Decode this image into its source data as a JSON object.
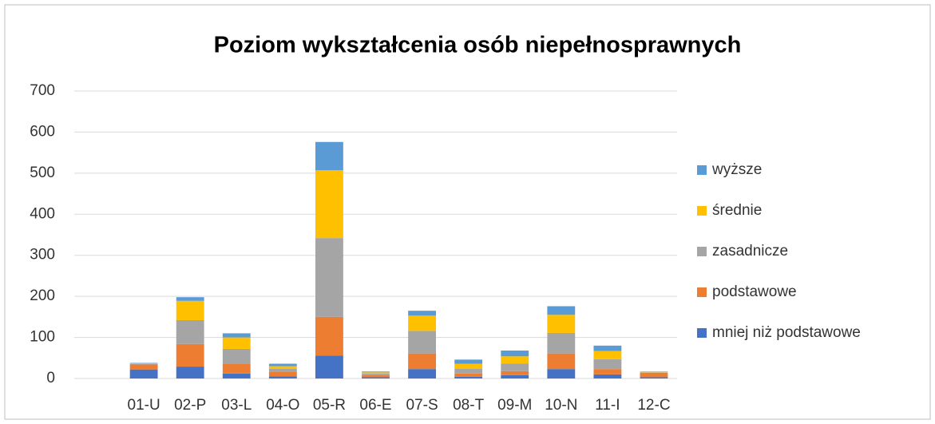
{
  "chart_data": {
    "type": "bar",
    "stacked": true,
    "title": "Poziom wykształcenia osób niepełnosprawnych",
    "categories": [
      null,
      "01-U",
      "02-P",
      "03-L",
      "04-O",
      "05-R",
      "06-E",
      "07-S",
      "08-T",
      "09-M",
      "10-N",
      "11-I",
      "12-C"
    ],
    "series": [
      {
        "name": "mniej niż podstawowe",
        "color": "#4472c4",
        "values": [
          null,
          22,
          29,
          12,
          5,
          56,
          3,
          23,
          4,
          8,
          23,
          10,
          3
        ]
      },
      {
        "name": "podstawowe",
        "color": "#ed7d31",
        "values": [
          null,
          12,
          55,
          23,
          12,
          94,
          5,
          38,
          8,
          10,
          38,
          13,
          11
        ]
      },
      {
        "name": "zasadnicze",
        "color": "#a5a5a5",
        "values": [
          null,
          1,
          58,
          37,
          7,
          192,
          4,
          55,
          12,
          18,
          50,
          24,
          1
        ]
      },
      {
        "name": "średnie",
        "color": "#ffc000",
        "values": [
          null,
          2,
          47,
          28,
          6,
          165,
          3,
          37,
          12,
          18,
          44,
          20,
          1
        ]
      },
      {
        "name": "wyższe",
        "color": "#5b9bd5",
        "values": [
          null,
          1,
          9,
          10,
          6,
          69,
          2,
          12,
          10,
          14,
          21,
          13,
          1
        ]
      }
    ],
    "ylim": [
      0,
      700
    ],
    "yticks": [
      0,
      100,
      200,
      300,
      400,
      500,
      600,
      700
    ],
    "grid": true,
    "legend": "right"
  }
}
